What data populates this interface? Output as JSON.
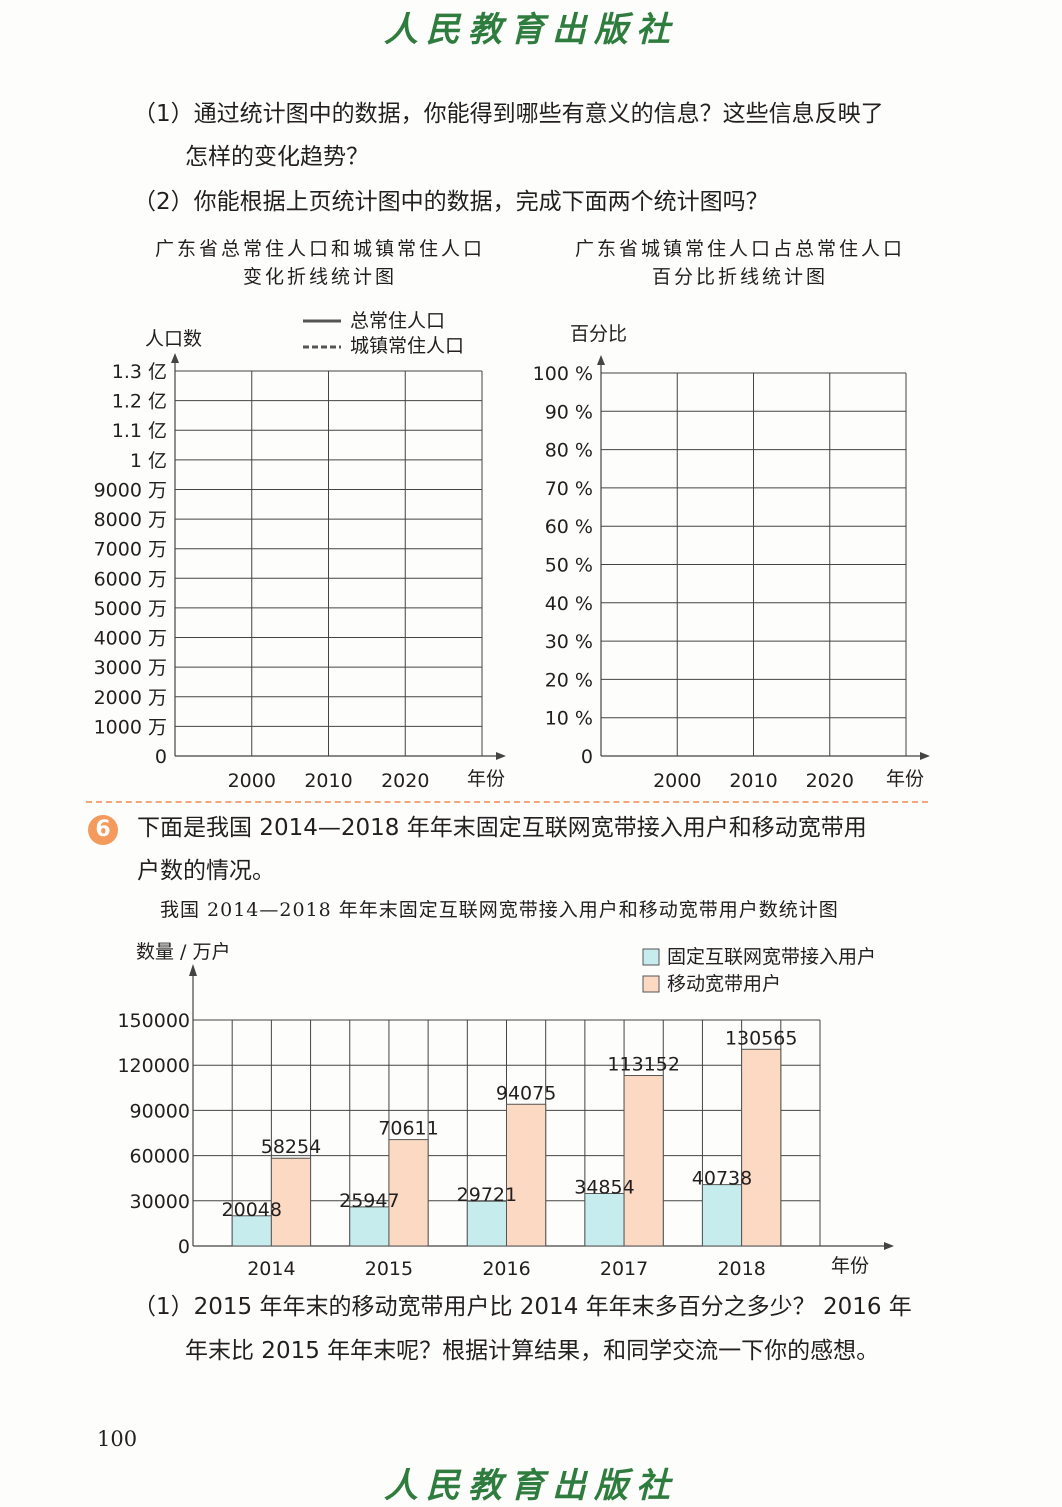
{
  "header": {
    "publisher": "人民教育出版社"
  },
  "questions": {
    "q1_line1": "（1）通过统计图中的数据，你能得到哪些有意义的信息？这些信息反映了",
    "q1_line2": "怎样的变化趋势？",
    "q2": "（2）你能根据上页统计图中的数据，完成下面两个统计图吗？"
  },
  "left_chart": {
    "title_line1": "广东省总常住人口和城镇常住人口",
    "title_line2": "变化折线统计图",
    "ylabel": "人口数",
    "legend": [
      "总常住人口",
      "城镇常住人口"
    ],
    "y_ticks": [
      "0",
      "1000 万",
      "2000 万",
      "3000 万",
      "4000 万",
      "5000 万",
      "6000 万",
      "7000 万",
      "8000 万",
      "9000 万",
      "1 亿",
      "1.1 亿",
      "1.2 亿",
      "1.3 亿"
    ],
    "x_ticks": [
      "2000",
      "2010",
      "2020"
    ],
    "xlabel": "年份"
  },
  "right_chart": {
    "title_line1": "广东省城镇常住人口占总常住人口",
    "title_line2": "百分比折线统计图",
    "ylabel": "百分比",
    "y_ticks": [
      "0",
      "10 %",
      "20 %",
      "30 %",
      "40 %",
      "50 %",
      "60 %",
      "70 %",
      "80 %",
      "90 %",
      "100 %"
    ],
    "x_ticks": [
      "2000",
      "2010",
      "2020"
    ],
    "xlabel": "年份"
  },
  "problem6": {
    "number": "6",
    "line1": "下面是我国 2014—2018 年年末固定互联网宽带接入用户和移动宽带用",
    "line2": "户数的情况。"
  },
  "chart_data": {
    "type": "bar",
    "title": "我国 2014—2018 年年末固定互联网宽带接入用户和移动宽带用户数统计图",
    "ylabel": "数量 / 万户",
    "xlabel": "年份",
    "categories": [
      "2014",
      "2015",
      "2016",
      "2017",
      "2018"
    ],
    "series": [
      {
        "name": "固定互联网宽带接入用户",
        "color": "#c6ecee",
        "values": [
          20048,
          25947,
          29721,
          34854,
          40738
        ]
      },
      {
        "name": "移动宽带用户",
        "color": "#fbd9c2",
        "values": [
          58254,
          70611,
          94075,
          113152,
          130565
        ]
      }
    ],
    "y_ticks": [
      "0",
      "30000",
      "60000",
      "90000",
      "120000",
      "150000"
    ],
    "ylim": [
      0,
      150000
    ],
    "grid": true,
    "legend": "top-right"
  },
  "bottom_question": {
    "line1": "（1）2015 年年末的移动宽带用户比 2014 年年末多百分之多少？ 2016 年",
    "line2": "年末比 2015 年年末呢？根据计算结果，和同学交流一下你的感想。"
  },
  "footer": {
    "page_number": "100",
    "publisher": "人民教育出版社"
  }
}
